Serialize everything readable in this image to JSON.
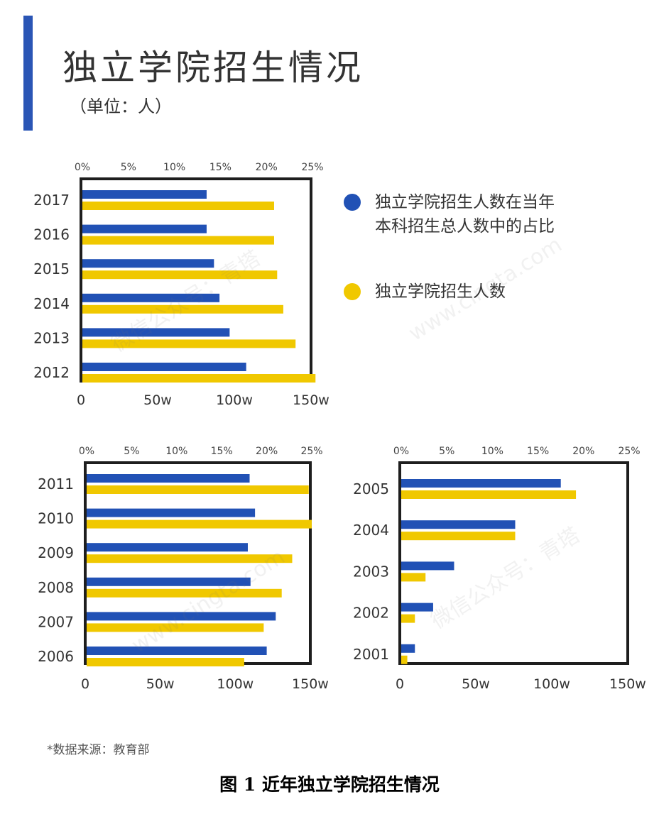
{
  "title": "独立学院招生情况",
  "unit": "（单位：人）",
  "legend": [
    {
      "label": "独立学院招生人数在当年\n本科招生总人数中的占比",
      "color": "#2151b5"
    },
    {
      "label": "独立学院招生人数",
      "color": "#f0c800"
    }
  ],
  "source": "*数据来源：教育部",
  "caption": "图 1   近年独立学院招生情况",
  "watermarks": [
    "微信公众号：青塔",
    "www.cingta.com"
  ],
  "colors": {
    "share": "#2151b5",
    "enrollment": "#f0c800",
    "accent": "#2a55b5"
  },
  "chart_data": [
    {
      "type": "bar",
      "orientation": "horizontal",
      "categories": [
        "2017",
        "2016",
        "2015",
        "2014",
        "2013",
        "2012"
      ],
      "series": [
        {
          "key": "share",
          "values": [
            13.5,
            13.5,
            14.3,
            14.9,
            16.0,
            17.8
          ]
        },
        {
          "key": "enrollment",
          "values": [
            125,
            125,
            127,
            131,
            139,
            152
          ]
        }
      ],
      "top_axis": {
        "ticks": [
          "0%",
          "5%",
          "10%",
          "15%",
          "20%",
          "25%"
        ],
        "range": [
          0,
          25
        ]
      },
      "bottom_axis": {
        "ticks": [
          "0",
          "50w",
          "100w",
          "150w"
        ],
        "range": [
          0,
          150
        ]
      }
    },
    {
      "type": "bar",
      "orientation": "horizontal",
      "categories": [
        "2011",
        "2010",
        "2009",
        "2008",
        "2007",
        "2006"
      ],
      "series": [
        {
          "key": "share",
          "values": [
            18.1,
            18.7,
            17.9,
            18.2,
            21.0,
            20.0
          ]
        },
        {
          "key": "enrollment",
          "values": [
            148,
            150,
            137,
            130,
            118,
            105
          ]
        }
      ],
      "top_axis": {
        "ticks": [
          "0%",
          "5%",
          "10%",
          "15%",
          "20%",
          "25%"
        ],
        "range": [
          0,
          25
        ]
      },
      "bottom_axis": {
        "ticks": [
          "0",
          "50w",
          "100w",
          "150w"
        ],
        "range": [
          0,
          150
        ]
      }
    },
    {
      "type": "bar",
      "orientation": "horizontal",
      "categories": [
        "2005",
        "2004",
        "2003",
        "2002",
        "2001"
      ],
      "series": [
        {
          "key": "share",
          "values": [
            17.5,
            12.5,
            5.8,
            3.5,
            1.5
          ]
        },
        {
          "key": "enrollment",
          "values": [
            115,
            75,
            16,
            9,
            4
          ]
        }
      ],
      "top_axis": {
        "ticks": [
          "0%",
          "5%",
          "10%",
          "15%",
          "20%",
          "25%"
        ],
        "range": [
          0,
          25
        ]
      },
      "bottom_axis": {
        "ticks": [
          "0",
          "50w",
          "100w",
          "150w"
        ],
        "range": [
          0,
          150
        ]
      }
    }
  ]
}
